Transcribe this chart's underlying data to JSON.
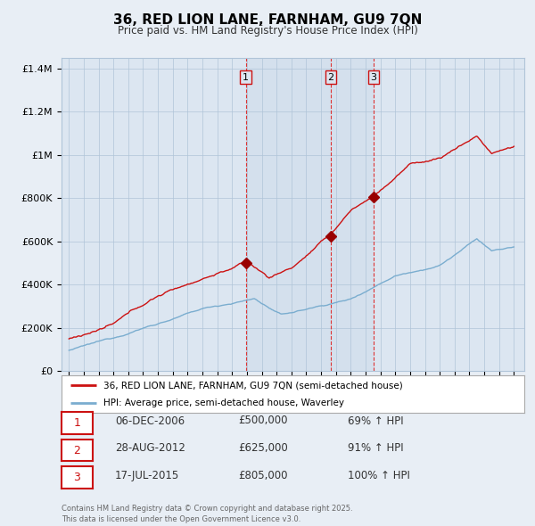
{
  "title": "36, RED LION LANE, FARNHAM, GU9 7QN",
  "subtitle": "Price paid vs. HM Land Registry's House Price Index (HPI)",
  "background_color": "#e8eef5",
  "plot_bg_color": "#dce6f1",
  "legend_line1": "36, RED LION LANE, FARNHAM, GU9 7QN (semi-detached house)",
  "legend_line2": "HPI: Average price, semi-detached house, Waverley",
  "footer": "Contains HM Land Registry data © Crown copyright and database right 2025.\nThis data is licensed under the Open Government Licence v3.0.",
  "sales": [
    {
      "label": "1",
      "date_num": 2006.92,
      "price": 500000,
      "text": "06-DEC-2006",
      "price_text": "£500,000",
      "hpi_text": "69% ↑ HPI"
    },
    {
      "label": "2",
      "date_num": 2012.66,
      "price": 625000,
      "text": "28-AUG-2012",
      "price_text": "£625,000",
      "hpi_text": "91% ↑ HPI"
    },
    {
      "label": "3",
      "date_num": 2015.54,
      "price": 805000,
      "text": "17-JUL-2015",
      "price_text": "£805,000",
      "hpi_text": "100% ↑ HPI"
    }
  ],
  "hpi_color": "#7aadcf",
  "price_color": "#cc1111",
  "sale_marker_color": "#990000",
  "ylim": [
    0,
    1450000
  ],
  "yticks": [
    0,
    200000,
    400000,
    600000,
    800000,
    1000000,
    1200000,
    1400000
  ],
  "ytick_labels": [
    "£0",
    "£200K",
    "£400K",
    "£600K",
    "£800K",
    "£1M",
    "£1.2M",
    "£1.4M"
  ],
  "xlim_start": 1994.5,
  "xlim_end": 2025.7,
  "grid_color": "#b0c4d8",
  "spine_color": "#b0c4d8"
}
